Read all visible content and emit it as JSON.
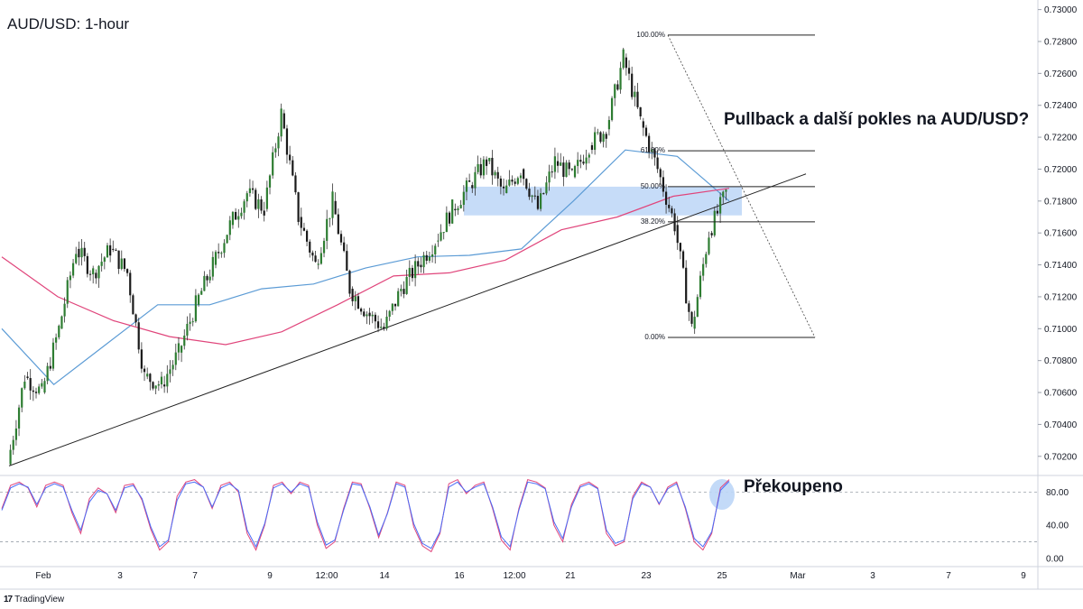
{
  "header": {
    "title": "AUD/USD: 1-hour"
  },
  "annotations": {
    "main": "Pullback a další pokles na AUD/USD?",
    "rsi": "Překoupeno"
  },
  "branding": {
    "logo": "17",
    "name": "TradingView"
  },
  "colors": {
    "bullish": "#2e7d32",
    "bearish": "#1a1a1a",
    "wick": "#333333",
    "ma_fast": "#5b9bd5",
    "ma_slow": "#e0457b",
    "zone": "#bcd6f7",
    "rsi_main": "#e0457b",
    "rsi_signal": "#4a6cf7",
    "trendline": "#222222",
    "highlight": "#bcd6f7"
  },
  "chart_data": [
    {
      "type": "candlestick",
      "title": "AUD/USD: 1-hour",
      "ylim": [
        0.7008,
        0.7306
      ],
      "y_ticks": [
        0.702,
        0.704,
        0.706,
        0.708,
        0.71,
        0.712,
        0.714,
        0.716,
        0.718,
        0.72,
        0.722,
        0.724,
        0.726,
        0.728,
        0.73
      ],
      "y_tick_labels": [
        "0.70200",
        "0.70400",
        "0.70600",
        "0.70800",
        "0.71000",
        "0.71200",
        "0.71400",
        "0.71600",
        "0.71800",
        "0.72000",
        "0.72200",
        "0.72400",
        "0.72600",
        "0.72800",
        "0.73000"
      ],
      "x_tick_labels": [
        "Feb",
        "3",
        "7",
        "9",
        "12:00",
        "14",
        "16",
        "12:00",
        "21",
        "23",
        "25",
        "Mar",
        "3",
        "7",
        "9"
      ],
      "price_path": [
        [
          "Feb",
          0.7015
        ],
        [
          "Feb",
          0.707
        ],
        [
          "Feb",
          0.706
        ],
        [
          "Feb",
          0.71
        ],
        [
          "3",
          0.715
        ],
        [
          "3",
          0.7135
        ],
        [
          "3",
          0.715
        ],
        [
          "3",
          0.7135
        ],
        [
          "7",
          0.707
        ],
        [
          "7",
          0.7065
        ],
        [
          "7",
          0.7085
        ],
        [
          "7",
          0.7115
        ],
        [
          "9",
          0.714
        ],
        [
          "9",
          0.7165
        ],
        [
          "9",
          0.7185
        ],
        [
          "12:00",
          0.7175
        ],
        [
          "12:00",
          0.7235
        ],
        [
          "12:00",
          0.717
        ],
        [
          "12:00",
          0.714
        ],
        [
          "14",
          0.718
        ],
        [
          "14",
          0.7125
        ],
        [
          "14",
          0.711
        ],
        [
          "14",
          0.71
        ],
        [
          "14",
          0.7125
        ],
        [
          "16",
          0.714
        ],
        [
          "16",
          0.7155
        ],
        [
          "16",
          0.7175
        ],
        [
          "16",
          0.719
        ],
        [
          "12:00",
          0.7205
        ],
        [
          "12:00",
          0.7185
        ],
        [
          "12:00",
          0.72
        ],
        [
          "21",
          0.7175
        ],
        [
          "21",
          0.7205
        ],
        [
          "21",
          0.7195
        ],
        [
          "21",
          0.7215
        ],
        [
          "23",
          0.7225
        ],
        [
          "23",
          0.727
        ],
        [
          "23",
          0.723
        ],
        [
          "23",
          0.72
        ],
        [
          "25",
          0.7165
        ],
        [
          "25",
          0.71
        ],
        [
          "25",
          0.716
        ],
        [
          "25",
          0.7185
        ]
      ],
      "fibonacci": [
        {
          "label": "100.00%",
          "value": 0.7284
        },
        {
          "label": "61.80%",
          "value": 0.72115
        },
        {
          "label": "50.00%",
          "value": 0.7189
        },
        {
          "label": "38.20%",
          "value": 0.7167
        },
        {
          "label": "0.00%",
          "value": 0.70945
        }
      ],
      "resistance_zone": [
        0.7171,
        0.7189
      ],
      "trendline": [
        [
          "Feb",
          0.7015
        ],
        [
          "25",
          0.7185
        ]
      ],
      "moving_averages": [
        {
          "values": [
            0.71,
            0.7065,
            0.709,
            0.7115,
            0.7115,
            0.7125,
            0.7128,
            0.7138,
            0.7145,
            0.7146,
            0.715,
            0.718,
            0.7212,
            0.7208,
            0.718
          ]
        },
        {
          "values": [
            0.7145,
            0.712,
            0.7105,
            0.7095,
            0.709,
            0.7098,
            0.7115,
            0.7133,
            0.7135,
            0.7143,
            0.7162,
            0.717,
            0.7183,
            0.7188
          ]
        }
      ]
    },
    {
      "type": "line",
      "title": "",
      "ylim": [
        -10,
        100
      ],
      "y_ticks": [
        0,
        40,
        80
      ],
      "y_tick_labels": [
        "0.00",
        "40.00",
        "80.00"
      ],
      "levels": [
        20,
        80
      ],
      "series": [
        {
          "values": [
            60,
            88,
            92,
            85,
            62,
            88,
            92,
            88,
            55,
            30,
            72,
            85,
            78,
            55,
            88,
            90,
            70,
            35,
            10,
            20,
            75,
            92,
            95,
            86,
            60,
            88,
            92,
            80,
            30,
            10,
            40,
            88,
            92,
            78,
            92,
            88,
            40,
            12,
            20,
            60,
            92,
            90,
            60,
            25,
            55,
            92,
            88,
            38,
            15,
            8,
            30,
            90,
            95,
            78,
            88,
            92,
            60,
            22,
            10,
            60,
            95,
            92,
            85,
            40,
            20,
            65,
            88,
            92,
            85,
            30,
            15,
            20,
            75,
            92,
            86,
            65,
            86,
            92,
            60,
            20,
            10,
            30,
            85,
            95
          ]
        },
        {
          "values": [
            58,
            85,
            90,
            86,
            65,
            85,
            90,
            86,
            58,
            34,
            68,
            82,
            78,
            58,
            85,
            88,
            72,
            38,
            14,
            22,
            70,
            90,
            92,
            86,
            62,
            85,
            90,
            82,
            34,
            14,
            42,
            85,
            90,
            80,
            90,
            86,
            44,
            16,
            22,
            58,
            90,
            88,
            62,
            28,
            54,
            90,
            86,
            42,
            18,
            12,
            32,
            86,
            92,
            80,
            86,
            90,
            62,
            26,
            14,
            58,
            92,
            90,
            84,
            44,
            24,
            62,
            86,
            90,
            84,
            34,
            18,
            22,
            72,
            90,
            86,
            66,
            84,
            90,
            62,
            24,
            14,
            32,
            82,
            93
          ]
        }
      ]
    }
  ]
}
